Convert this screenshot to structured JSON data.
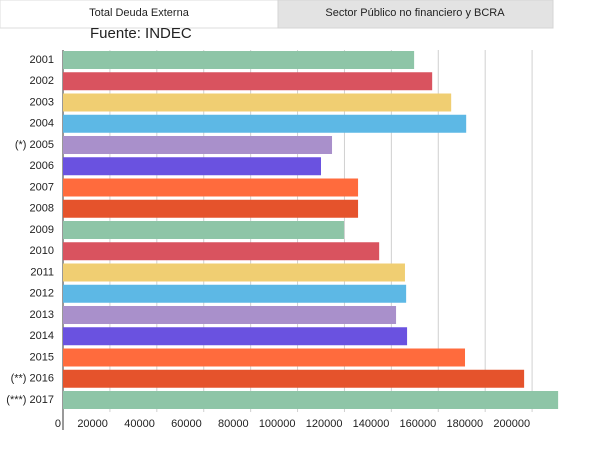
{
  "tabs": [
    "Total Deuda Externa",
    "Sector Público no financiero y BCRA"
  ],
  "chart_data": {
    "type": "bar",
    "orientation": "horizontal",
    "subtitle": "Fuente: INDEC",
    "categories": [
      "2001",
      "2002",
      "2003",
      "2004",
      "(*) 2005",
      "2006",
      "2007",
      "2008",
      "2009",
      "2010",
      "2011",
      "2012",
      "2013",
      "2014",
      "2015",
      "(**) 2016",
      "(***) 2017"
    ],
    "values": [
      149700,
      157400,
      165500,
      171900,
      114700,
      110000,
      125800,
      125800,
      119800,
      134800,
      145800,
      146300,
      142000,
      146700,
      171400,
      196600,
      211100
    ],
    "colors": [
      "#8ec5a7",
      "#d9535f",
      "#f0ce72",
      "#5db8e5",
      "#a990cb",
      "#6a52e0",
      "#ff6b3d",
      "#e5532c",
      "#8ec5a7",
      "#d9535f",
      "#f0ce72",
      "#5db8e5",
      "#a990cb",
      "#6a52e0",
      "#ff6b3d",
      "#e5532c",
      "#8ec5a7"
    ],
    "xlim": [
      0,
      220000
    ],
    "xticks": [
      0,
      20000,
      40000,
      60000,
      80000,
      100000,
      120000,
      140000,
      160000,
      180000,
      200000
    ],
    "grid": true
  }
}
